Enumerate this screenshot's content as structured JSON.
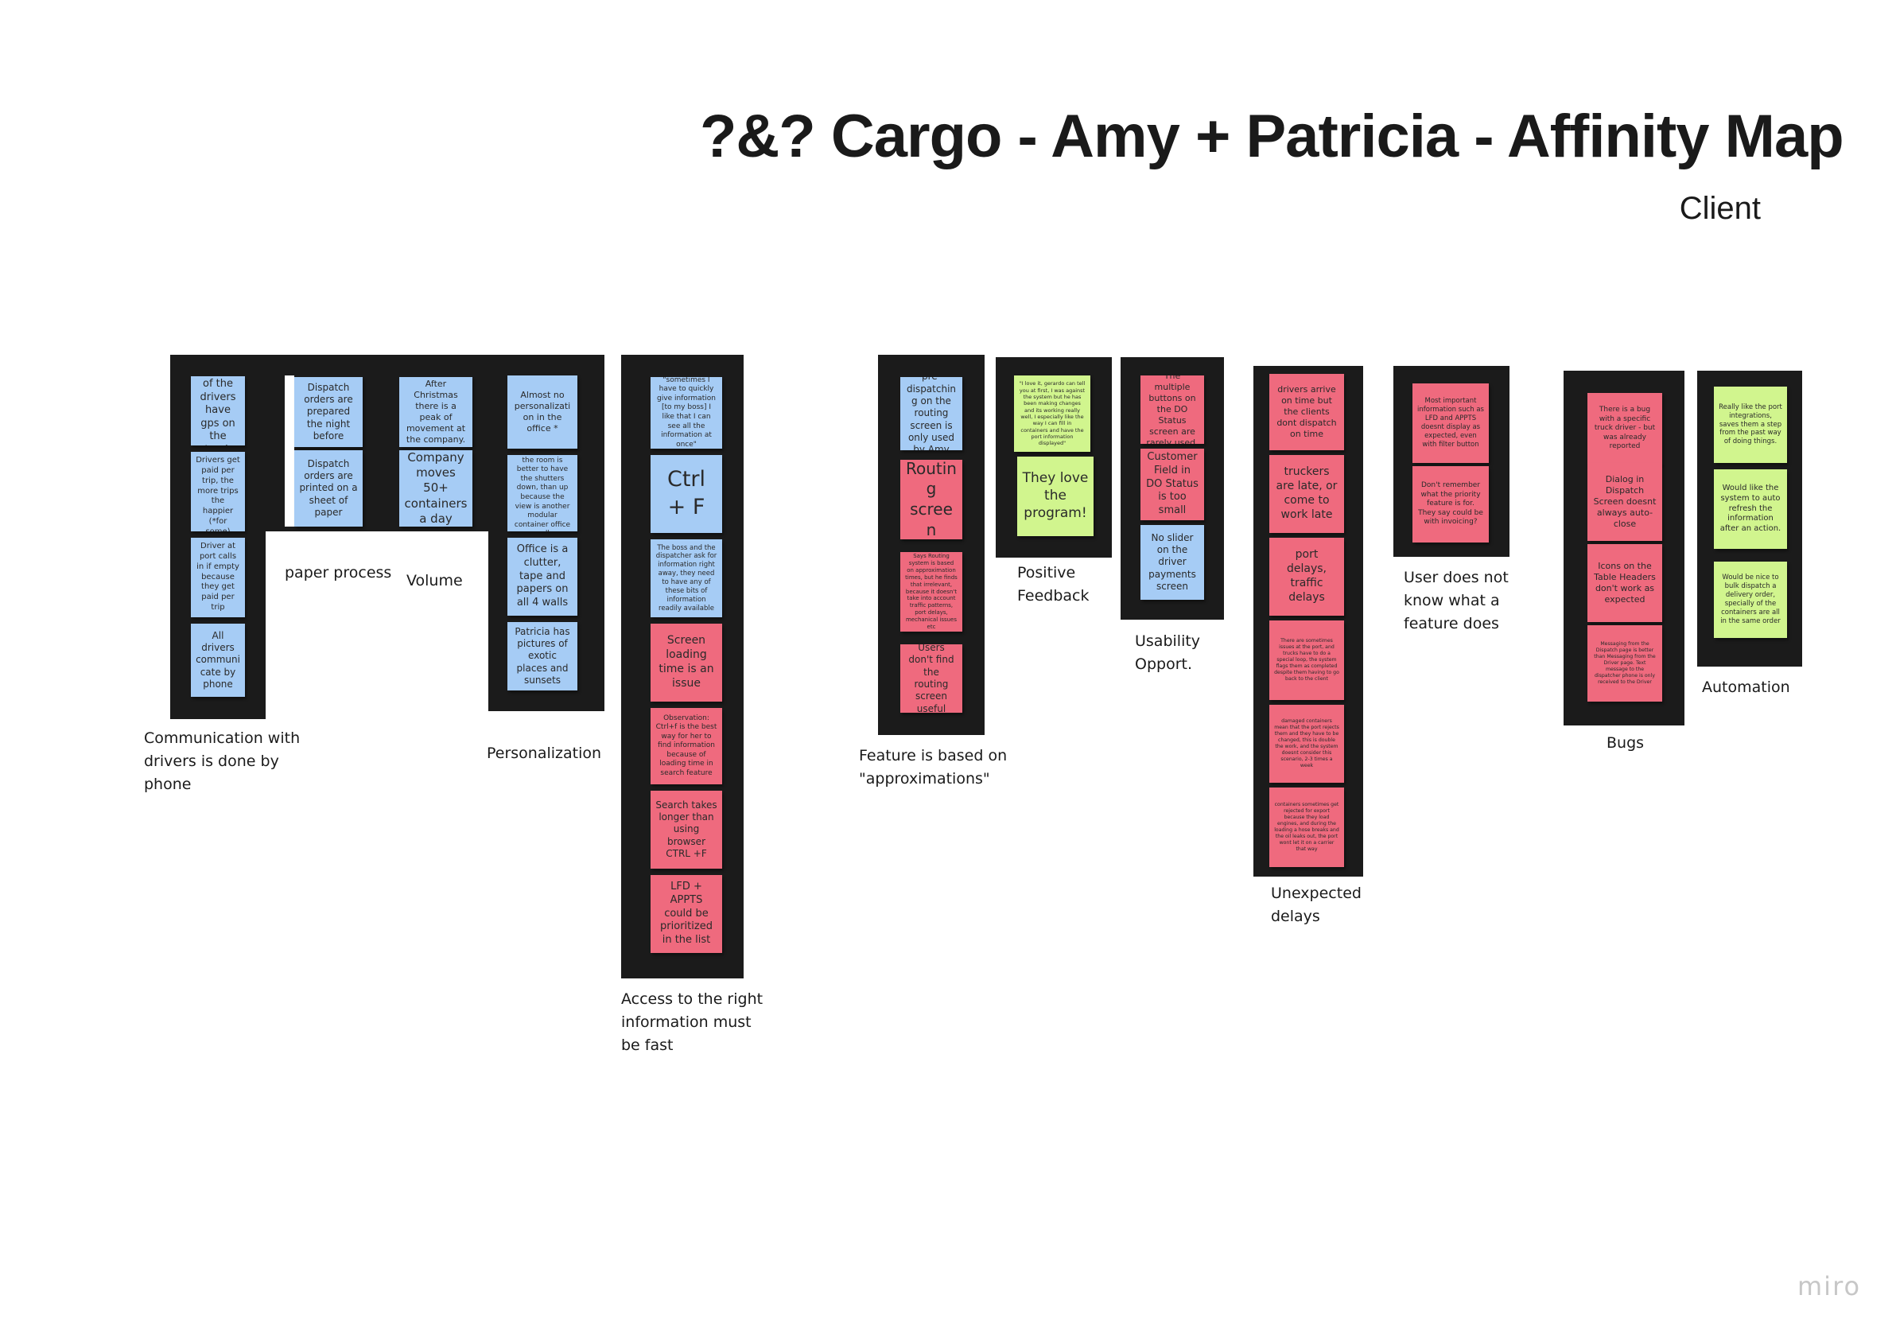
{
  "title": "?&? Cargo - Amy + Patricia - Affinity Map",
  "subtitle": "Client",
  "watermark": "miro",
  "colors": {
    "blue": "#a6ccf5",
    "red": "#ef6a7e",
    "green": "#d1f58e",
    "frame": "#1b1b1b"
  },
  "clusters": [
    {
      "name": "Communication with drivers is done by phone",
      "notes": [
        "Not all of the drivers have gps on the truck",
        "Truck Drivers get paid per trip, the more trips the happier (*for some)",
        "Driver at port calls in if empty because they get paid per trip",
        "All drivers communicate by phone"
      ]
    },
    {
      "name": "paper process",
      "notes": [
        "Dispatch orders are prepared the night before",
        "Dispatch orders are printed on a sheet of paper"
      ]
    },
    {
      "name": "Volume",
      "notes": [
        "After Christmas there is a peak of movement at the company.",
        "Company moves 50+ containers a day"
      ]
    },
    {
      "name": "Personalization",
      "notes": [
        "Almost no personalization in the office *",
        "The window in the room is better to have the shutters down, than up because the view is another modular container office wall",
        "Office is a clutter, tape and papers on all 4 walls",
        "Patricia has pictures of exotic places and sunsets"
      ]
    },
    {
      "name": "Access to the right information must be fast",
      "notes": [
        "\"sometimes I have to quickly give information [to my boss] I like that I can see all the information at once\"",
        "Ctrl + F",
        "The boss and the dispatcher ask for information right away, they need to have any of these bits of information readily available",
        "Screen loading time is an issue",
        "Observation: Ctrl+f is the best way for her to find information because of loading time in search feature",
        "Search takes longer than using browser CTRL +F",
        "LFD + APPTS could be prioritized in the list"
      ]
    },
    {
      "name": "Feature is based on \"approximations\"",
      "notes": [
        "pre-dispatching on the routing screen is only used by Amy",
        "Routing screen",
        "Says Routing system is based on approximation times, but he finds that irrelevant, because it doesn't take into account traffic patterns, port delays, mechanical issues etc",
        "Users don't find the routing screen useful"
      ]
    },
    {
      "name": "Positive Feedback",
      "notes": [
        "\"I love it, gerardo can tell you at first, I was against the system but he has been making changes and its working really well, I especially like the way I can fill in containers and have the port information displayed\"",
        "They love the program!"
      ]
    },
    {
      "name": "Usability Opport.",
      "notes": [
        "The multiple buttons on the DO Status screen are rarely used.",
        "Customer Field in DO Status is too small",
        "No slider on the driver payments screen"
      ]
    },
    {
      "name": "Unexpected delays",
      "notes": [
        "drivers arrive on time but the clients dont dispatch on time",
        "truckers are late, or come to work late",
        "port delays, traffic delays",
        "There are sometimes issues at the port, and trucks have to do a special loop, the system flags them as completed despite them having to go back to the client",
        "damaged containers mean that the port rejects them and they have to be changed, this is double the work, and the system doesnt consider this scenario, 2-3 times a week",
        "containers sometimes get rejected for export because they load engines, and during the loading a hose breaks and the oil leaks out, the port wont let it on a carrier that way"
      ]
    },
    {
      "name": "User does not know what a feature does",
      "notes": [
        "Most important information such as LFD and APPTS doesnt display as expected, even with filter button",
        "Don't remember what the priority feature is for. They say could be with invoicing?"
      ]
    },
    {
      "name": "Bugs",
      "notes": [
        "There is a bug with a specific truck driver - but was already reported",
        "Dialog in Dispatch Screen doesnt always auto-close",
        "Icons on the Table Headers don't work as expected",
        "Messaging from the Dispatch page is better than Messaging from the Driver page. Text message to the dispatcher phone is only received to the Driver"
      ]
    },
    {
      "name": "Automation",
      "notes": [
        "Really like the port integrations, saves them a step from the past way of doing things.",
        "Would like the system to auto refresh the information after an action.",
        "Would be nice to bulk dispatch a delivery order, specially of the containers are all in the same order"
      ]
    }
  ]
}
